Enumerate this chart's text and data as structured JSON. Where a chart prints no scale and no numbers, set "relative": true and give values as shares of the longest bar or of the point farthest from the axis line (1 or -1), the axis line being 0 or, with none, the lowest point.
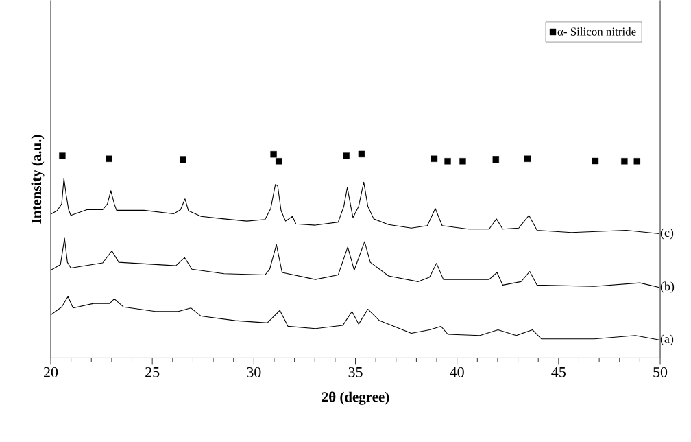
{
  "chart_data": {
    "type": "line",
    "relative": true,
    "xlabel": "**2θ (degree)**",
    "ylabel": "**Intensity (a.u.)**",
    "xlim": [
      20,
      50
    ],
    "xticks": [
      20,
      25,
      30,
      35,
      40,
      45,
      50
    ],
    "legend": "top right",
    "grid": false,
    "series": [
      {
        "name": "(a)",
        "color": "#000000",
        "marker": "none",
        "x": [
          20.0,
          20.54,
          20.85,
          21.1,
          22.11,
          22.9,
          23.13,
          23.58,
          25.15,
          26.28,
          26.9,
          27.4,
          29.09,
          30.66,
          31.28,
          31.68,
          33.03,
          34.38,
          34.83,
          35.16,
          35.61,
          36.18,
          37.75,
          38.65,
          39.21,
          39.55,
          41.12,
          42.02,
          42.92,
          43.71,
          44.16,
          46.75,
          48.78,
          49.96
        ],
        "values": [
          0.211,
          0.25,
          0.301,
          0.245,
          0.267,
          0.267,
          0.29,
          0.25,
          0.228,
          0.228,
          0.245,
          0.205,
          0.183,
          0.172,
          0.233,
          0.155,
          0.144,
          0.16,
          0.228,
          0.166,
          0.239,
          0.183,
          0.121,
          0.138,
          0.155,
          0.116,
          0.11,
          0.138,
          0.11,
          0.138,
          0.093,
          0.093,
          0.11,
          0.088
        ]
      },
      {
        "name": "(b)",
        "color": "#000000",
        "marker": "none",
        "x": [
          20.0,
          20.48,
          20.68,
          20.82,
          20.99,
          22.56,
          23.01,
          23.35,
          26.16,
          26.59,
          26.95,
          28.53,
          30.55,
          30.78,
          31.11,
          31.39,
          33.03,
          34.15,
          34.62,
          34.94,
          35.45,
          35.73,
          36.63,
          38.09,
          38.65,
          38.99,
          39.33,
          41.58,
          41.97,
          42.25,
          43.15,
          43.58,
          43.94,
          46.75,
          49.0,
          49.96
        ],
        "values": [
          0.43,
          0.458,
          0.587,
          0.469,
          0.441,
          0.466,
          0.525,
          0.469,
          0.452,
          0.492,
          0.435,
          0.413,
          0.407,
          0.435,
          0.556,
          0.419,
          0.385,
          0.407,
          0.544,
          0.43,
          0.57,
          0.469,
          0.402,
          0.374,
          0.396,
          0.464,
          0.385,
          0.385,
          0.419,
          0.357,
          0.374,
          0.424,
          0.357,
          0.351,
          0.368,
          0.346
        ]
      },
      {
        "name": "(c)",
        "color": "#000000",
        "marker": "none",
        "x": [
          20.0,
          20.31,
          20.54,
          20.65,
          20.76,
          20.88,
          20.99,
          21.78,
          22.56,
          22.79,
          22.96,
          23.13,
          23.24,
          24.59,
          26.05,
          26.39,
          26.61,
          26.78,
          27.4,
          28.53,
          29.65,
          30.55,
          30.83,
          31.06,
          31.17,
          31.34,
          31.56,
          31.9,
          32.07,
          33.03,
          34.15,
          34.43,
          34.6,
          34.77,
          34.88,
          35.16,
          35.41,
          35.61,
          35.9,
          36.63,
          37.75,
          38.54,
          38.93,
          39.27,
          40.56,
          41.58,
          41.94,
          42.25,
          43.04,
          43.54,
          43.94,
          45.63,
          48.33,
          49.96
        ],
        "values": [
          0.705,
          0.722,
          0.755,
          0.881,
          0.8,
          0.727,
          0.699,
          0.727,
          0.727,
          0.755,
          0.82,
          0.755,
          0.724,
          0.724,
          0.707,
          0.727,
          0.78,
          0.722,
          0.694,
          0.682,
          0.671,
          0.679,
          0.733,
          0.851,
          0.845,
          0.722,
          0.671,
          0.694,
          0.657,
          0.651,
          0.666,
          0.744,
          0.836,
          0.744,
          0.688,
          0.744,
          0.862,
          0.744,
          0.682,
          0.654,
          0.637,
          0.649,
          0.733,
          0.649,
          0.632,
          0.632,
          0.682,
          0.632,
          0.637,
          0.699,
          0.626,
          0.615,
          0.626,
          0.609
        ]
      },
      {
        "name": "α- Silicon nitride",
        "type": "scatter",
        "color": "#000000",
        "marker": "square",
        "x": [
          20.57,
          22.87,
          26.51,
          30.97,
          31.23,
          34.55,
          35.3,
          38.88,
          39.54,
          40.28,
          41.91,
          43.47,
          46.81,
          48.24,
          48.86
        ],
        "values": [
          0.991,
          0.977,
          0.971,
          0.999,
          0.965,
          0.991,
          1.0,
          0.977,
          0.965,
          0.965,
          0.972,
          0.977,
          0.966,
          0.965,
          0.965
        ]
      }
    ]
  }
}
